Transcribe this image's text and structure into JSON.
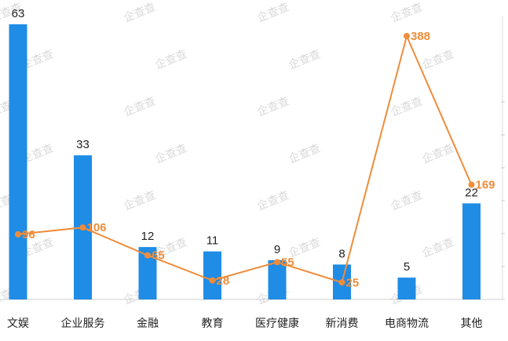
{
  "chart_data": {
    "type": "bar",
    "categories": [
      "文娱",
      "企业服务",
      "金融",
      "教育",
      "医疗健康",
      "新消费",
      "电商物流",
      "其他"
    ],
    "series": [
      {
        "type": "bar",
        "values": [
          63,
          33,
          12,
          11,
          9,
          8,
          5,
          22
        ],
        "color": "#1f8ce6"
      },
      {
        "type": "line",
        "values": [
          96,
          106,
          65,
          28,
          55,
          25,
          388,
          169
        ],
        "color": "#ef8c3a"
      }
    ],
    "ylim_bar": [
      0,
      63
    ],
    "ylim_line": [
      0,
      388
    ],
    "grid": false,
    "legend": "none",
    "watermark": "企查查"
  }
}
